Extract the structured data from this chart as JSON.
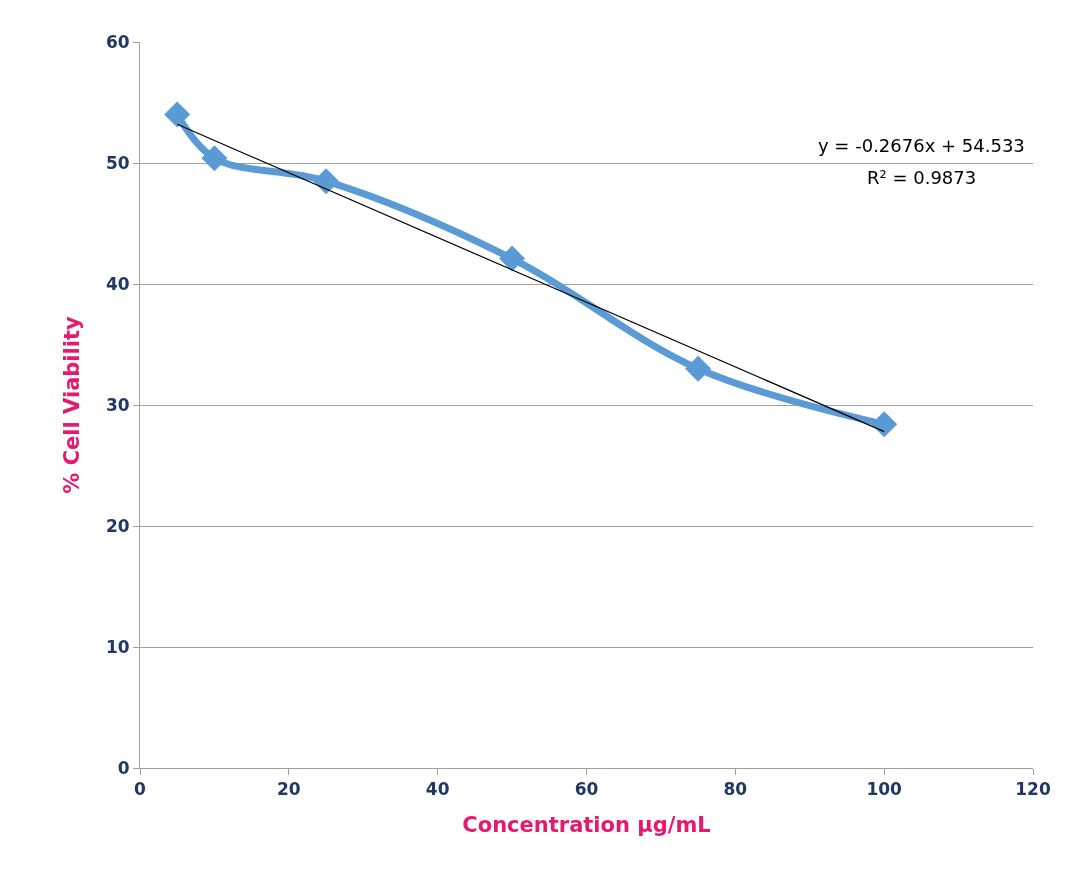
{
  "chart_data": {
    "type": "line",
    "xlabel": "Concentration µg/mL",
    "ylabel": "% Cell Viability",
    "xlim": [
      0,
      120
    ],
    "xticks": [
      0,
      20,
      40,
      60,
      80,
      100,
      120
    ],
    "ylim": [
      0,
      60
    ],
    "yticks": [
      0,
      10,
      20,
      30,
      40,
      50,
      60
    ],
    "grid": "y",
    "series": [
      {
        "color": "#5b9bd5",
        "x": [
          5,
          10,
          25,
          50,
          75,
          100
        ],
        "values": [
          54,
          50.4,
          48.5,
          42.1,
          33,
          28.4
        ],
        "marker": "diamond",
        "line_style": "solid"
      },
      {
        "color": "#000000",
        "x": [
          5,
          100
        ],
        "values": [
          53.2,
          27.8
        ],
        "marker": "none",
        "line_style": "solid"
      }
    ],
    "annotations": [
      "y = -0.2676x + 54.533",
      "R² = 0.9873"
    ]
  }
}
